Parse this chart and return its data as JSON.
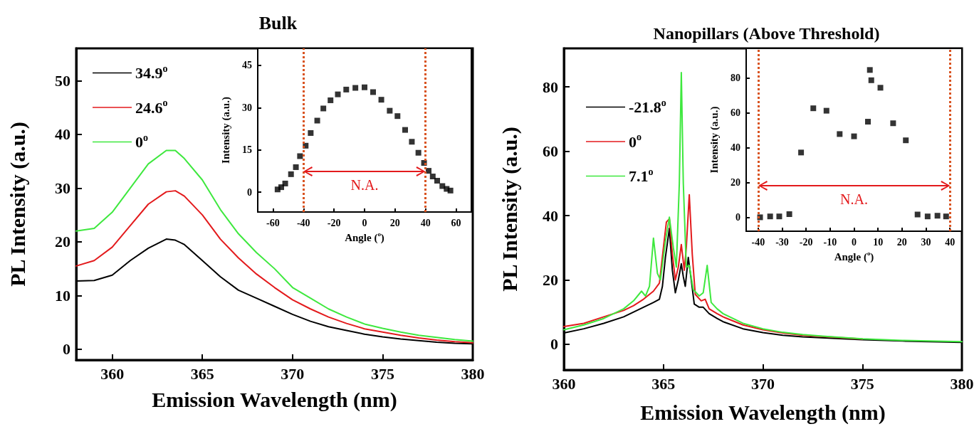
{
  "chart_data": [
    {
      "type": "line",
      "title": "Bulk",
      "xlabel": "Emission Wavelength (nm)",
      "ylabel": "PL Intensity (a.u.)",
      "xlim": [
        358,
        380
      ],
      "ylim": [
        -2,
        56
      ],
      "xticks": [
        360,
        365,
        370,
        375,
        380
      ],
      "yticks": [
        0,
        10,
        20,
        30,
        40,
        50
      ],
      "legend": "top left",
      "x": [
        358,
        359,
        360,
        361,
        362,
        363,
        363.5,
        364,
        365,
        366,
        367,
        368,
        369,
        370,
        371,
        372,
        373,
        374,
        375,
        376,
        377,
        378,
        379,
        380
      ],
      "series": [
        {
          "name": "34.9$^{o}$",
          "color": "#000000",
          "values": [
            12.7,
            12.8,
            13.8,
            16.5,
            18.8,
            20.5,
            20.3,
            19.5,
            16.5,
            13.5,
            11,
            9.5,
            8,
            6.5,
            5.2,
            4.2,
            3.5,
            2.8,
            2.3,
            1.9,
            1.6,
            1.3,
            1.1,
            1.0
          ]
        },
        {
          "name": "24.6$^{o}$",
          "color": "#e31a1c",
          "values": [
            15.5,
            16.5,
            19,
            23,
            27,
            29.3,
            29.5,
            28.5,
            25,
            20.5,
            17,
            14,
            11.5,
            9.2,
            7.5,
            6,
            4.8,
            3.8,
            3.2,
            2.6,
            2.1,
            1.7,
            1.4,
            1.2
          ]
        },
        {
          "name": "0$^{o}$",
          "color": "#3ee83e",
          "values": [
            22,
            22.5,
            25.5,
            30,
            34.5,
            37,
            37,
            35.5,
            31.5,
            26,
            21.5,
            18,
            15,
            11.5,
            9.5,
            7.5,
            6,
            4.7,
            3.9,
            3.2,
            2.6,
            2.2,
            1.8,
            1.5
          ]
        }
      ]
    },
    {
      "type": "scatter",
      "xlabel": "Angle ($^{o}$)",
      "ylabel": "Intensity (a.u.)",
      "xlim": [
        -70,
        70
      ],
      "ylim": [
        -7,
        51
      ],
      "xticks": [
        -60,
        -40,
        -20,
        0,
        20,
        40,
        60
      ],
      "yticks": [
        0,
        15,
        30,
        45
      ],
      "marker": "square",
      "x": [
        -57,
        -54.6,
        -52,
        -48.2,
        -45,
        -42.3,
        -38.6,
        -35.3,
        -31,
        -27,
        -22.3,
        -17.5,
        -12,
        -6,
        0,
        5.6,
        11,
        16.5,
        21.6,
        26.6,
        31,
        35.3,
        39,
        42,
        44.7,
        47.6,
        51,
        53.8,
        56.3
      ],
      "series": [
        {
          "color": "#000000",
          "values": [
            1.0,
            1.8,
            3.1,
            6.4,
            8.9,
            12.8,
            16.5,
            21,
            25.4,
            29.7,
            32.6,
            34.7,
            36.4,
            37,
            37.2,
            35.5,
            32.8,
            28.9,
            27,
            22.1,
            17.9,
            14,
            10.4,
            7.6,
            5.6,
            4.1,
            2.2,
            1.2,
            0.6
          ]
        }
      ],
      "ref_lines": [
        {
          "axis": "x",
          "value": -40,
          "color": "#d95320",
          "line_style": "dotted"
        },
        {
          "axis": "x",
          "value": 40,
          "color": "#d95320",
          "line_style": "dotted"
        }
      ],
      "annotations": [
        "N.A."
      ]
    },
    {
      "type": "line",
      "title": "Nanopillars (Above Threshold)",
      "xlabel": "Emission Wavelength (nm)",
      "ylabel": "PL Intensity (a.u.)",
      "xlim": [
        360,
        380
      ],
      "ylim": [
        -8,
        92
      ],
      "xticks": [
        360,
        365,
        370,
        375,
        380
      ],
      "yticks": [
        0,
        20,
        40,
        60,
        80
      ],
      "legend": "top left",
      "series": [
        {
          "name": "-21.8$^{o}$",
          "color": "#000000",
          "x": [
            360,
            361,
            362,
            363,
            363.5,
            364,
            364.5,
            364.8,
            364.95,
            365.1,
            365.3,
            365.45,
            365.6,
            365.75,
            365.9,
            366.0,
            366.1,
            366.25,
            366.4,
            366.55,
            366.8,
            367.0,
            367.3,
            367.7,
            368,
            369,
            370,
            371,
            372,
            375,
            377,
            380
          ],
          "values": [
            3.5,
            4.8,
            6.5,
            8.5,
            10,
            11.5,
            13,
            14,
            18,
            27,
            36,
            23,
            16,
            20,
            25,
            21,
            18,
            27,
            20,
            12.5,
            11.5,
            11.5,
            9.5,
            8,
            7,
            4.8,
            3.6,
            2.8,
            2.3,
            1.4,
            1,
            0.6
          ]
        },
        {
          "name": "0$^{o}$",
          "color": "#e31a1c",
          "x": [
            360,
            361,
            362,
            363,
            363.5,
            364,
            364.5,
            364.8,
            365.0,
            365.15,
            365.3,
            365.45,
            365.6,
            365.75,
            365.9,
            366.05,
            366.15,
            366.3,
            366.45,
            366.6,
            366.9,
            367.1,
            367.3,
            367.7,
            368,
            369,
            370,
            371,
            372,
            375
          ],
          "values": [
            5.5,
            6.5,
            8.5,
            10.5,
            12,
            14,
            16.5,
            19,
            30,
            38,
            39,
            28,
            20,
            24,
            31,
            23,
            30,
            46.5,
            28,
            15.5,
            13.5,
            14,
            11,
            9.5,
            8.5,
            6,
            4.5,
            3.5,
            2.8,
            1.6
          ]
        },
        {
          "name": "7.1$^{o}$",
          "color": "#3ee83e",
          "x": [
            360,
            361,
            362,
            363,
            363.5,
            363.9,
            364.1,
            364.3,
            364.5,
            364.7,
            364.85,
            365.1,
            365.3,
            365.5,
            365.65,
            365.8,
            365.9,
            366.0,
            366.15,
            366.3,
            366.5,
            366.8,
            367.0,
            367.2,
            367.4,
            367.7,
            368,
            369,
            370,
            371,
            372,
            373,
            375,
            377,
            380
          ],
          "values": [
            4.5,
            6,
            8,
            11,
            13.5,
            16.5,
            15,
            18,
            33,
            22,
            20,
            32,
            39.5,
            30,
            24,
            50,
            84.5,
            50,
            24,
            24.5,
            17,
            15,
            16,
            24.5,
            13,
            11,
            9.5,
            6.5,
            4.8,
            3.7,
            3,
            2.5,
            1.7,
            1.2,
            0.8
          ]
        }
      ]
    },
    {
      "type": "scatter",
      "xlabel": "Angle ($^{o}$)",
      "ylabel": "Intensity (a.u.)",
      "xlim": [
        -45,
        45
      ],
      "ylim": [
        -8,
        97
      ],
      "xticks": [
        -40,
        -30,
        -20,
        -10,
        0,
        10,
        20,
        30,
        40
      ],
      "yticks": [
        0,
        20,
        40,
        60,
        80
      ],
      "marker": "square",
      "x": [
        -39.2,
        -35,
        -31.2,
        -27,
        -22.1,
        -17,
        -11.5,
        -6,
        0,
        5.8,
        6.6,
        7.2,
        11,
        16.3,
        21.6,
        26.5,
        30.7,
        34.8,
        38.4
      ],
      "series": [
        {
          "color": "#000000",
          "values": [
            0,
            0.5,
            0.5,
            1.8,
            37.2,
            62.6,
            61.2,
            47.8,
            46.5,
            54.9,
            84.6,
            78.7,
            74.4,
            54,
            44.2,
            1.6,
            0.5,
            0.9,
            0.5
          ]
        }
      ],
      "ref_lines": [
        {
          "axis": "x",
          "value": -40,
          "color": "#d95320",
          "line_style": "dotted"
        },
        {
          "axis": "x",
          "value": 40,
          "color": "#d95320",
          "line_style": "dotted"
        }
      ],
      "annotations": [
        "N.A."
      ]
    }
  ]
}
